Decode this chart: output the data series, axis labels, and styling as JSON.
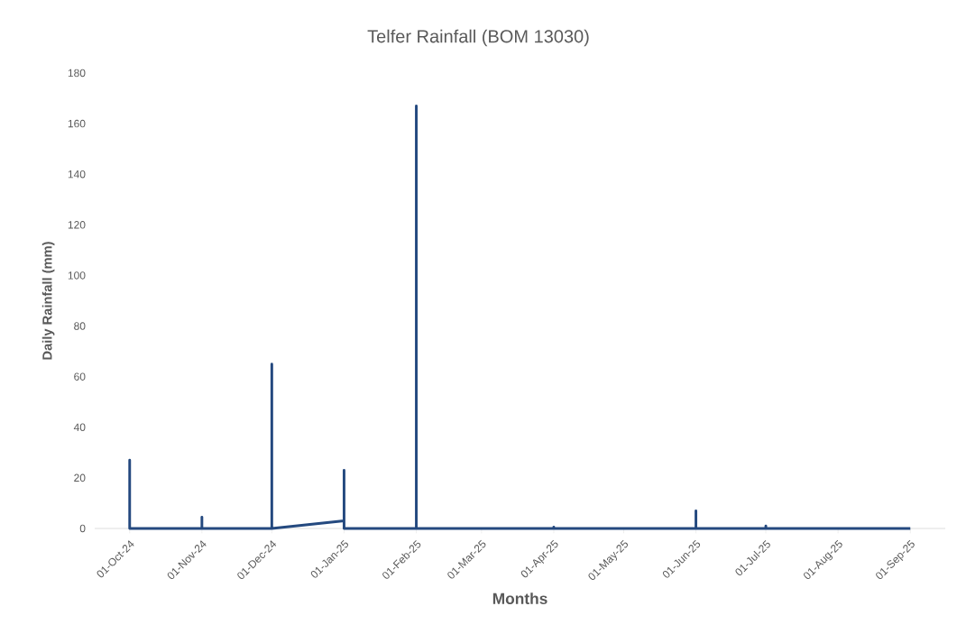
{
  "chart_data": {
    "type": "line",
    "title": "Telfer Rainfall (BOM 13030)",
    "xlabel": "Months",
    "ylabel": "Daily Rainfall (mm)",
    "x": [
      "2024-10-01",
      "2024-10-01",
      "2024-10-01",
      "2024-11-01",
      "2024-11-01",
      "2024-11-01",
      "2024-12-01",
      "2024-12-01",
      "2024-12-01",
      "2025-01-01",
      "2025-01-01",
      "2025-01-01",
      "2025-02-01",
      "2025-02-01",
      "2025-02-01",
      "2025-03-01",
      "2025-04-01",
      "2025-04-01",
      "2025-04-01",
      "2025-05-01",
      "2025-06-01",
      "2025-06-01",
      "2025-06-01",
      "2025-07-01",
      "2025-07-01",
      "2025-07-01",
      "2025-08-01",
      "2025-09-01"
    ],
    "values": [
      0,
      27,
      0,
      0,
      4.5,
      0,
      0,
      65,
      0,
      3,
      23,
      0,
      0,
      167,
      0,
      0,
      0,
      0.5,
      0,
      0,
      0,
      7,
      0,
      0,
      1,
      0,
      0,
      0
    ],
    "color": "#24497f",
    "line_style": "solid",
    "marker": "none",
    "grid": false,
    "xlim": [
      "2024-09-16",
      "2025-09-16"
    ],
    "xticks": [
      {
        "value": "2024-10-01",
        "label": "01-Oct-24"
      },
      {
        "value": "2024-11-01",
        "label": "01-Nov-24"
      },
      {
        "value": "2024-12-01",
        "label": "01-Dec-24"
      },
      {
        "value": "2025-01-01",
        "label": "01-Jan-25"
      },
      {
        "value": "2025-02-01",
        "label": "01-Feb-25"
      },
      {
        "value": "2025-03-01",
        "label": "01-Mar-25"
      },
      {
        "value": "2025-04-01",
        "label": "01-Apr-25"
      },
      {
        "value": "2025-05-01",
        "label": "01-May-25"
      },
      {
        "value": "2025-06-01",
        "label": "01-Jun-25"
      },
      {
        "value": "2025-07-01",
        "label": "01-Jul-25"
      },
      {
        "value": "2025-08-01",
        "label": "01-Aug-25"
      },
      {
        "value": "2025-09-01",
        "label": "01-Sep-25"
      }
    ],
    "ylim": [
      0,
      180
    ],
    "yticks": [
      0,
      20,
      40,
      60,
      80,
      100,
      120,
      140,
      160,
      180
    ]
  }
}
